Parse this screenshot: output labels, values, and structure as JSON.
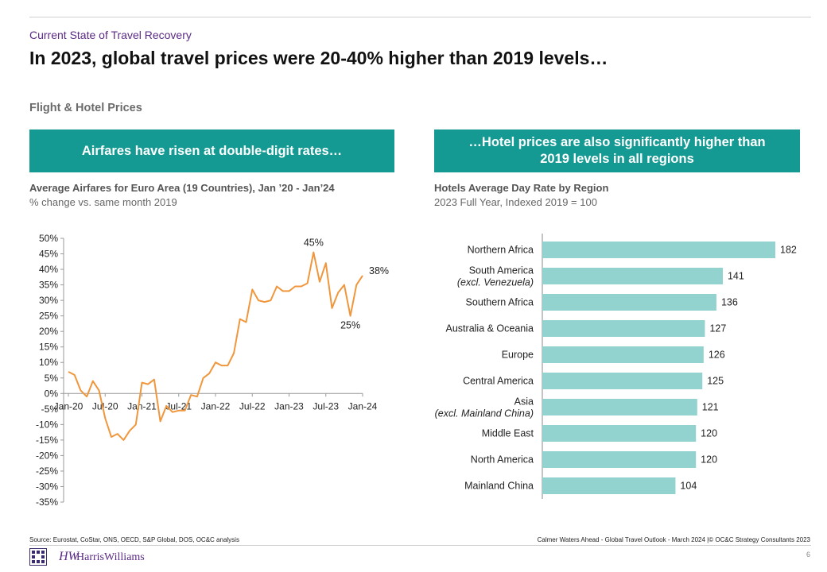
{
  "header": {
    "section": "Current State of Travel Recovery",
    "title": "In 2023, global travel prices were 20-40% higher than 2019 levels…",
    "subhead": "Flight & Hotel Prices"
  },
  "banners": {
    "left": "Airfares have risen at double-digit rates…",
    "right_line1": "…Hotel prices are also significantly higher than",
    "right_line2": "2019 levels in all regions"
  },
  "chart_data": [
    {
      "type": "line",
      "title": "Average Airfares for Euro Area (19 Countries), Jan ’20 - Jan’24",
      "subtitle": "% change vs. same month 2019",
      "xlabel": "",
      "ylabel": "",
      "ylim": [
        -35,
        50
      ],
      "y_ticks": [
        "50%",
        "45%",
        "40%",
        "35%",
        "30%",
        "25%",
        "20%",
        "15%",
        "10%",
        "5%",
        "0%",
        "-5%",
        "-10%",
        "-15%",
        "-20%",
        "-25%",
        "-30%",
        "-35%"
      ],
      "x_ticks": [
        "Jan-20",
        "Jul-20",
        "Jan-21",
        "Jul-21",
        "Jan-22",
        "Jul-22",
        "Jan-23",
        "Jul-23",
        "Jan-24"
      ],
      "series_color": "#f0963c",
      "values": [
        7,
        6,
        1,
        -1,
        4,
        1,
        -8,
        -14,
        -13,
        -15,
        -12,
        -10,
        3.5,
        3,
        4.5,
        -9,
        -4,
        -6,
        -5.5,
        -5.5,
        -0.5,
        -1,
        5,
        6.5,
        10,
        9,
        9,
        13,
        24,
        23,
        33.5,
        30,
        29.5,
        30,
        34.5,
        33,
        33,
        34.5,
        34.5,
        35.5,
        45.5,
        36,
        42,
        27.5,
        32.5,
        35,
        25,
        35,
        38
      ],
      "annotations": [
        {
          "text": "45%",
          "index": 40
        },
        {
          "text": "25%",
          "index": 46
        },
        {
          "text": "38%",
          "index": 48
        }
      ]
    },
    {
      "type": "bar",
      "title": "Hotels Average Day Rate by Region",
      "subtitle": "2023 Full Year, Indexed 2019 = 100",
      "xlabel": "",
      "ylabel": "",
      "xlim": [
        0,
        200
      ],
      "bar_color": "#93d3cf",
      "categories": [
        {
          "name": "Northern Africa",
          "note": ""
        },
        {
          "name": "South America",
          "note": "(excl. Venezuela)"
        },
        {
          "name": "Southern Africa",
          "note": ""
        },
        {
          "name": "Australia & Oceania",
          "note": ""
        },
        {
          "name": "Europe",
          "note": ""
        },
        {
          "name": "Central America",
          "note": ""
        },
        {
          "name": "Asia",
          "note": "(excl. Mainland China)"
        },
        {
          "name": "Middle East",
          "note": ""
        },
        {
          "name": "North America",
          "note": ""
        },
        {
          "name": "Mainland China",
          "note": ""
        }
      ],
      "values": [
        182,
        141,
        136,
        127,
        126,
        125,
        121,
        120,
        120,
        104
      ]
    }
  ],
  "footer": {
    "source": "Source: Eurostat, CoStar, ONS, OECD, S&P Global, DOS, OC&C analysis",
    "right": "Calmer Waters Ahead - Global Travel Outlook - March 2024  |© OC&C Strategy Consultants 2023",
    "page": "6",
    "logo_mark": "HW",
    "logo_text": "HarrisWilliams"
  }
}
